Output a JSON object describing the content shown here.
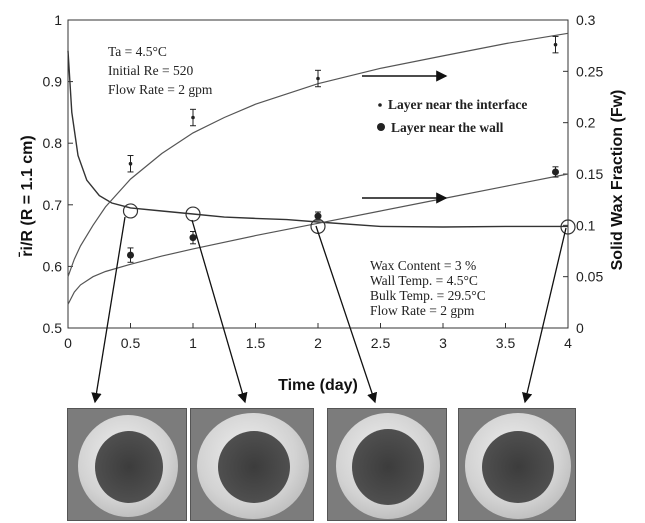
{
  "chart_data": {
    "type": "line",
    "title": "",
    "xlabel": "Time (day)",
    "ylabel_left": "r̄i/R   (R = 1.1 cm)",
    "ylabel_right": "Solid Wax Fraction (Fw)",
    "xlim": [
      0,
      4
    ],
    "ylim_left": [
      0.5,
      1.0
    ],
    "ylim_right": [
      0,
      0.3
    ],
    "x_ticks": [
      "0",
      "0.5",
      "1",
      "1.5",
      "2",
      "2.5",
      "3",
      "3.5",
      "4"
    ],
    "y_left_ticks": [
      "0.5",
      "0.6",
      "0.7",
      "0.8",
      "0.9",
      "1"
    ],
    "y_right_ticks": [
      "0",
      "0.05",
      "0.1",
      "0.15",
      "0.2",
      "0.25",
      "0.3"
    ],
    "grid": false,
    "series": [
      {
        "name": "",
        "axis": "left",
        "style": "line",
        "x": [
          0,
          0.03,
          0.08,
          0.15,
          0.25,
          0.35,
          0.5,
          0.75,
          1.0,
          1.25,
          1.5,
          1.75,
          2.0,
          2.5,
          3.0,
          3.5,
          4.0
        ],
        "y": [
          0.95,
          0.85,
          0.78,
          0.74,
          0.715,
          0.703,
          0.695,
          0.69,
          0.685,
          0.68,
          0.678,
          0.676,
          0.672,
          0.665,
          0.664,
          0.665,
          0.665
        ]
      },
      {
        "name": "",
        "axis": "right",
        "style": "line",
        "x": [
          0,
          0.05,
          0.1,
          0.2,
          0.3,
          0.5,
          0.75,
          1.0,
          1.25,
          1.5,
          2.0,
          2.5,
          3.0,
          3.5,
          4.0
        ],
        "y": [
          0.05,
          0.067,
          0.08,
          0.1,
          0.118,
          0.145,
          0.17,
          0.19,
          0.205,
          0.218,
          0.238,
          0.253,
          0.265,
          0.277,
          0.287
        ]
      },
      {
        "name": "",
        "axis": "right",
        "style": "line",
        "x": [
          0,
          0.05,
          0.1,
          0.2,
          0.3,
          0.5,
          0.75,
          1.0,
          1.5,
          2.0,
          2.5,
          3.0,
          3.5,
          4.0
        ],
        "y": [
          0.023,
          0.035,
          0.042,
          0.05,
          0.055,
          0.062,
          0.07,
          0.077,
          0.09,
          0.102,
          0.114,
          0.126,
          0.138,
          0.15
        ]
      },
      {
        "name": "Layer near the interface",
        "axis": "right",
        "style": "errorbar",
        "marker": "small-dot",
        "x": [
          0.5,
          1.0,
          2.0,
          3.9
        ],
        "y": [
          0.16,
          0.205,
          0.243,
          0.276
        ],
        "err": [
          0.008,
          0.008,
          0.008,
          0.008
        ]
      },
      {
        "name": "Layer near the wall",
        "axis": "right",
        "style": "errorbar",
        "marker": "dot",
        "x": [
          0.5,
          1.0,
          2.0,
          3.9
        ],
        "y": [
          0.071,
          0.088,
          0.109,
          0.152
        ],
        "err": [
          0.007,
          0.006,
          0.004,
          0.005
        ]
      }
    ],
    "sample_points": {
      "axis": "left",
      "x": [
        0.5,
        1.0,
        2.0,
        4.0
      ],
      "y": [
        0.69,
        0.685,
        0.665,
        0.664
      ]
    },
    "annotation_top": [
      "Ta = 4.5°C",
      "Initial Re = 520",
      "Flow Rate = 2 gpm"
    ],
    "annotation_bottom": [
      "Wax Content = 3 %",
      "Wall Temp. = 4.5°C",
      "Bulk Temp. = 29.5°C",
      "Flow Rate = 2 gpm"
    ],
    "legend_placement": "right",
    "photos": 4
  }
}
